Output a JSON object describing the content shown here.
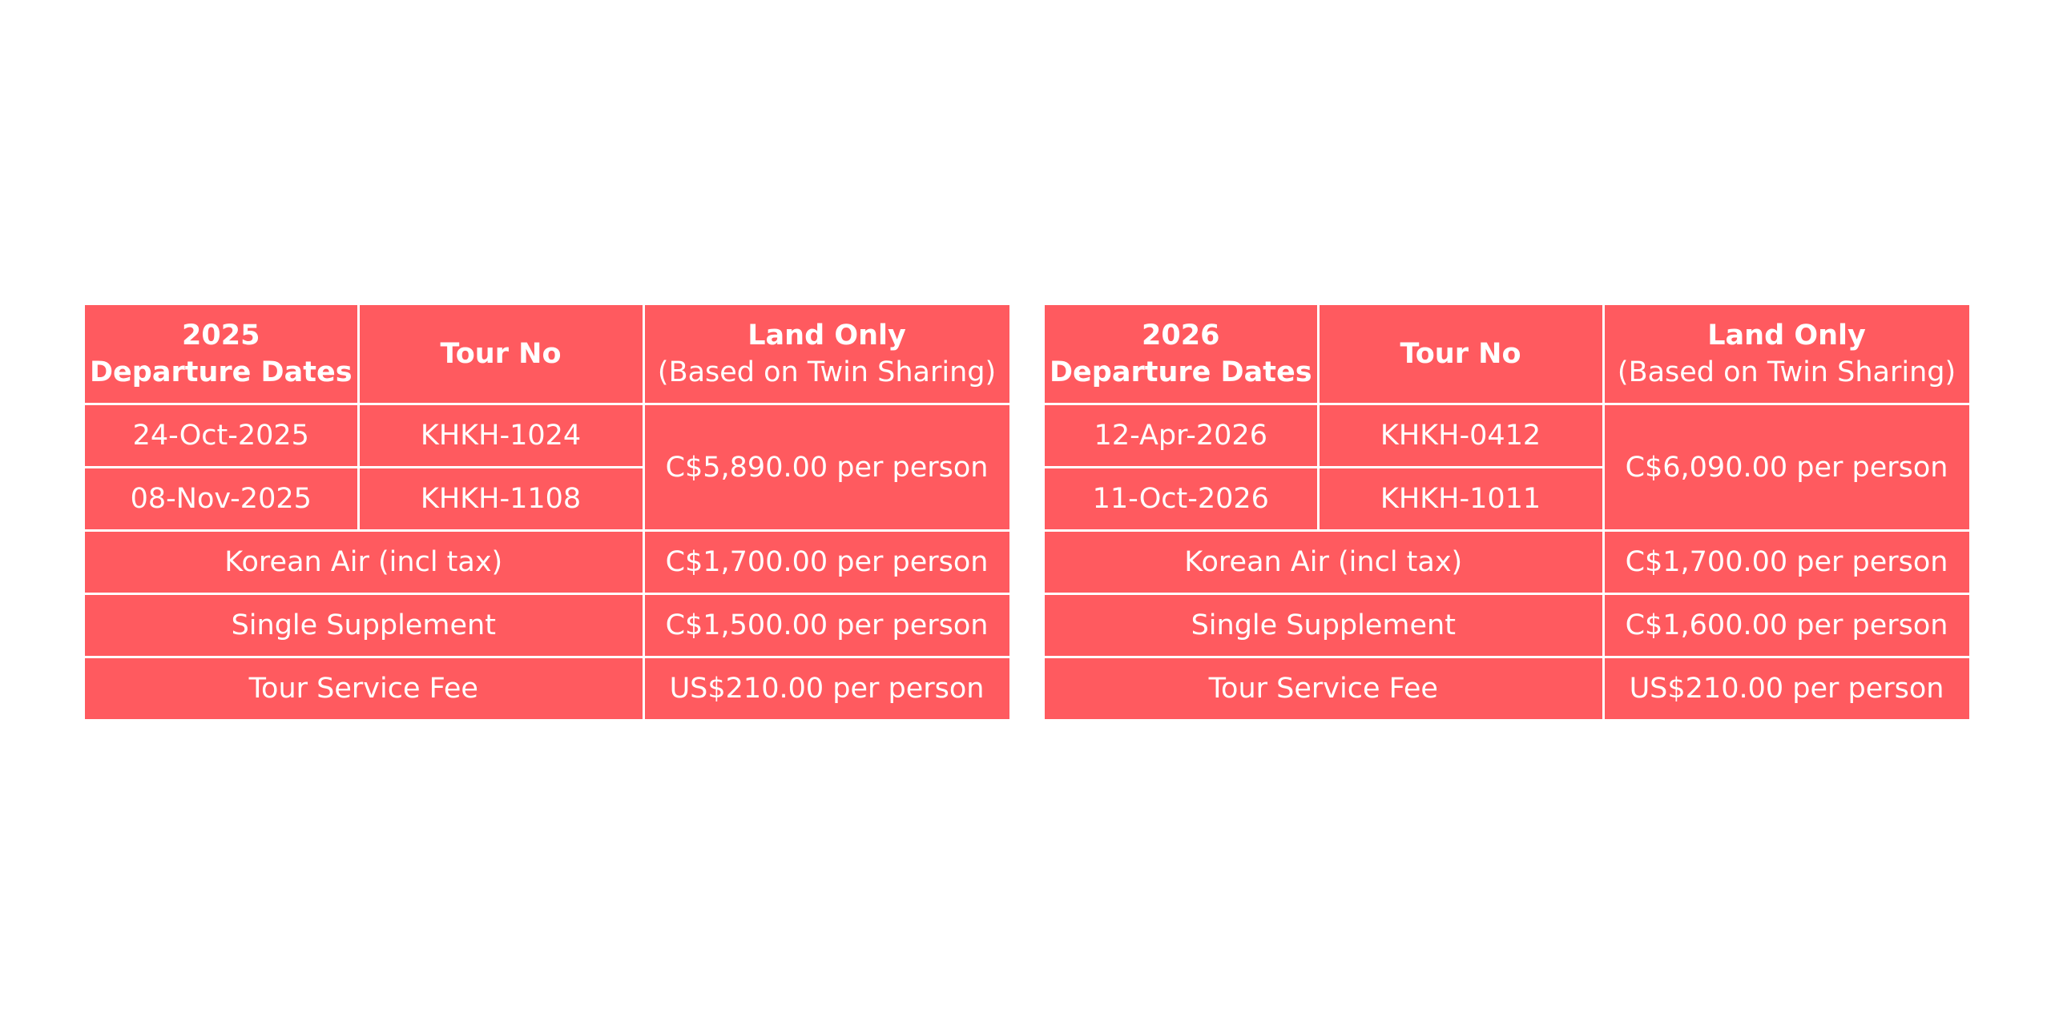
{
  "tables": [
    {
      "year": "2025",
      "header": {
        "departure_label": "Departure Dates",
        "tour_no_label": "Tour No",
        "land_only_label": "Land Only",
        "land_only_note": "(Based on Twin Sharing)"
      },
      "departures": [
        {
          "date": "24-Oct-2025",
          "tour_no": "KHKH-1024"
        },
        {
          "date": "08-Nov-2025",
          "tour_no": "KHKH-1108"
        }
      ],
      "land_price": "C$5,890.00 per person",
      "extras": [
        {
          "label": "Korean Air (incl tax)",
          "price": "C$1,700.00 per person"
        },
        {
          "label": "Single Supplement",
          "price": "C$1,500.00 per person"
        },
        {
          "label": "Tour Service Fee",
          "price": "US$210.00 per person"
        }
      ]
    },
    {
      "year": "2026",
      "header": {
        "departure_label": "Departure Dates",
        "tour_no_label": "Tour No",
        "land_only_label": "Land Only",
        "land_only_note": "(Based on Twin Sharing)"
      },
      "departures": [
        {
          "date": "12-Apr-2026",
          "tour_no": "KHKH-0412"
        },
        {
          "date": "11-Oct-2026",
          "tour_no": "KHKH-1011"
        }
      ],
      "land_price": "C$6,090.00 per person",
      "extras": [
        {
          "label": "Korean Air (incl tax)",
          "price": "C$1,700.00 per person"
        },
        {
          "label": "Single Supplement",
          "price": "C$1,600.00 per person"
        },
        {
          "label": "Tour Service Fee",
          "price": "US$210.00 per person"
        }
      ]
    }
  ],
  "colors": {
    "table_background": "#ff5a5f",
    "text": "#ffffff",
    "border": "#ffffff"
  }
}
